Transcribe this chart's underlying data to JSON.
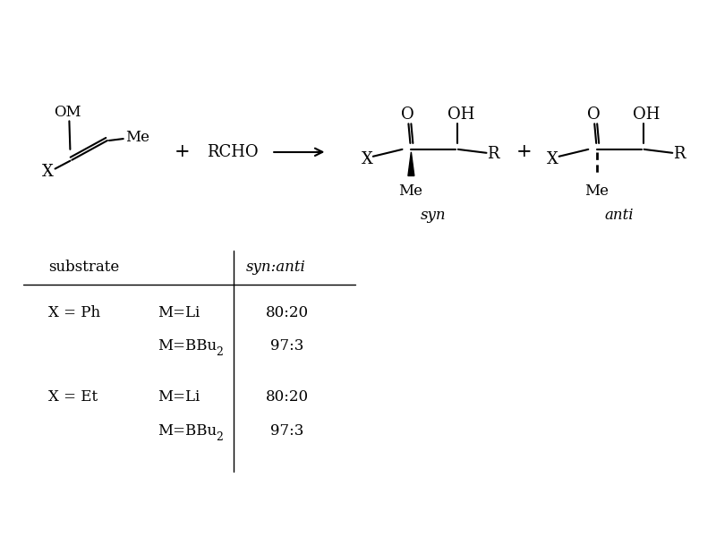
{
  "bg_color": "#ffffff",
  "reaction": {
    "syn_label": "syn",
    "anti_label": "anti"
  },
  "table": {
    "header_substrate": "substrate",
    "header_ratio": "syn:anti",
    "row1_sub": "X = Ph",
    "row1_m1": "M=Li",
    "row1_r1": "80:20",
    "row1_r2": "97:3",
    "row2_sub": "X = Et",
    "row2_m1": "M=Li",
    "row2_r1": "80:20",
    "row2_r2": "97:3"
  },
  "font_size": 13,
  "font_size_italic": 12
}
